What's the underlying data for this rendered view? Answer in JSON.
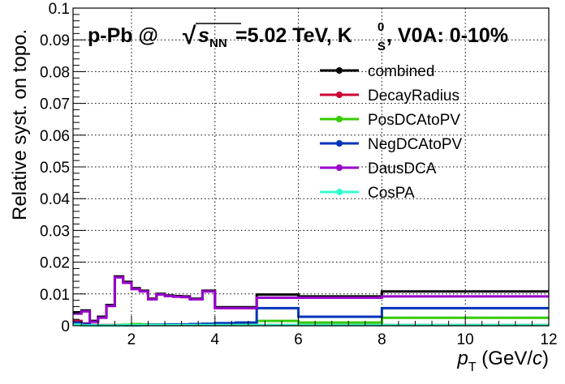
{
  "chart_data": {
    "type": "line",
    "title": {
      "pre": "p-Pb @ ",
      "sqrt": "√",
      "s": "s",
      "nn": "NN",
      "energy": "=5.02 TeV, K",
      "k_sup": "0",
      "k_sub": "S",
      "post": ", V0A: 0-10%"
    },
    "xlabel": {
      "p": "p",
      "sub": "T",
      "unit_open": " (GeV/",
      "c": "c",
      "unit_close": ")"
    },
    "ylabel": "Relative syst. on topo.",
    "xlim": [
      0.6,
      12
    ],
    "ylim": [
      0,
      0.1
    ],
    "grid": true,
    "legend_position": "top-right",
    "x_ticks": [
      2,
      4,
      6,
      8,
      10,
      12
    ],
    "y_ticks": [
      0,
      0.01,
      0.02,
      0.03,
      0.04,
      0.05,
      0.06,
      0.07,
      0.08,
      0.09,
      0.1
    ],
    "x_tick_labels": [
      "2",
      "4",
      "6",
      "8",
      "10",
      "12"
    ],
    "y_tick_labels": [
      "0",
      "0.01",
      "0.02",
      "0.03",
      "0.04",
      "0.05",
      "0.06",
      "0.07",
      "0.08",
      "0.09",
      "0.1"
    ],
    "bin_edges": [
      0.6,
      0.8,
      1.0,
      1.2,
      1.4,
      1.6,
      1.8,
      2.0,
      2.2,
      2.4,
      2.6,
      2.8,
      3.0,
      3.2,
      3.4,
      3.7,
      4.0,
      4.5,
      5.0,
      6.0,
      8.0,
      12.0
    ],
    "series": [
      {
        "name": "combined",
        "color": "#000000",
        "values": [
          0.0042,
          0.0048,
          0.0015,
          0.0028,
          0.0065,
          0.0155,
          0.0138,
          0.0118,
          0.011,
          0.0085,
          0.01,
          0.0095,
          0.0093,
          0.0092,
          0.0085,
          0.011,
          0.0058,
          0.0058,
          0.0098,
          0.0092,
          0.0108
        ]
      },
      {
        "name": "DecayRadius",
        "color": "#cc0033",
        "values": [
          0.0015,
          0.0007,
          0.0002,
          0.0002,
          0.0002,
          0.0002,
          0.0002,
          0.0002,
          0.0002,
          0.0002,
          0.0002,
          0.0002,
          0.0002,
          0.0002,
          0.0002,
          0.0002,
          0.0002,
          0.0002,
          0.0002,
          0.0002,
          0.0002
        ]
      },
      {
        "name": "PosDCAtoPV",
        "color": "#33cc00",
        "values": [
          0.0005,
          0.0002,
          0.0001,
          0.0001,
          0.0001,
          0.0002,
          0.0003,
          0.0005,
          0.0004,
          0.0003,
          0.0003,
          0.0003,
          0.0003,
          0.0003,
          0.0003,
          0.0003,
          0.0004,
          0.0005,
          0.0015,
          0.001,
          0.0025
        ]
      },
      {
        "name": "NegDCAtoPV",
        "color": "#0033bb",
        "values": [
          0.001,
          0.0005,
          0.0002,
          0.0001,
          0.0001,
          0.0001,
          0.0001,
          0.0001,
          0.0002,
          0.0003,
          0.0003,
          0.0004,
          0.0004,
          0.0004,
          0.0005,
          0.0006,
          0.0008,
          0.001,
          0.0055,
          0.0028,
          0.0055
        ]
      },
      {
        "name": "DausDCA",
        "color": "#9900cc",
        "values": [
          0.0038,
          0.0045,
          0.0012,
          0.0025,
          0.0062,
          0.0152,
          0.0135,
          0.0115,
          0.0108,
          0.0083,
          0.0098,
          0.0093,
          0.0091,
          0.009,
          0.0083,
          0.0108,
          0.0055,
          0.0055,
          0.0088,
          0.0088,
          0.0092
        ]
      },
      {
        "name": "CosPA",
        "color": "#33ffcc",
        "values": [
          0.0003,
          0.0001,
          0.0001,
          0.0001,
          0.0001,
          0.0001,
          0.0002,
          0.0002,
          0.0002,
          0.0002,
          0.0002,
          0.0002,
          0.0002,
          0.0002,
          0.0002,
          0.0002,
          0.0002,
          0.0002,
          0.0002,
          0.0002,
          0.0002
        ]
      }
    ]
  }
}
